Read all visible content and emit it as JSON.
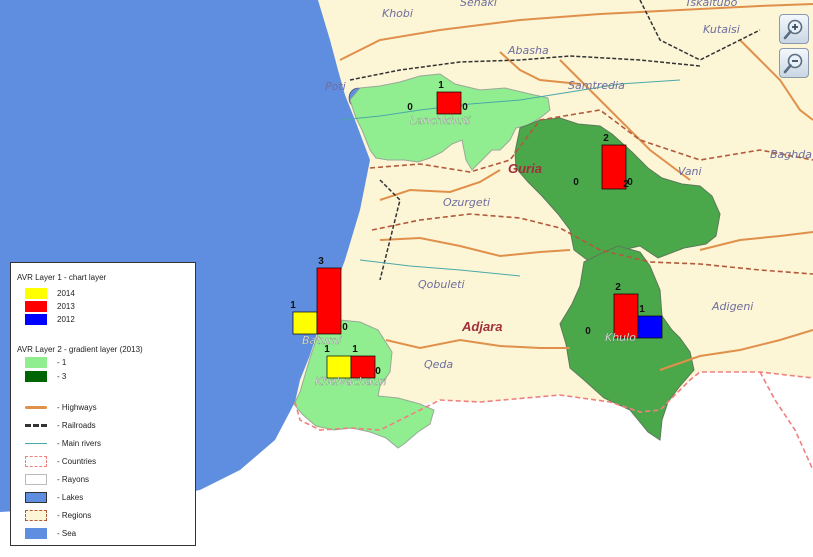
{
  "map": {
    "places": {
      "khobi": "Khobi",
      "senaki": "Senaki",
      "tskaltubo": "Tskaltubo",
      "abasha": "Abasha",
      "kutaisi": "Kutaisi",
      "poti": "Poti",
      "samtredia": "Samtredia",
      "vani": "Vani",
      "baghdati": "Baghda",
      "ozurgeti": "Ozurgeti",
      "qobuleti": "Qobuleti",
      "adigeni": "Adigeni",
      "qeda": "Qeda"
    },
    "regions": {
      "guria": "Guria",
      "adjara": "Adjara"
    },
    "rayons": {
      "lanchkhuti": {
        "name": "Lanchkhuti",
        "gradient_value": 1,
        "bars": {
          "2014": 0,
          "2013": 1,
          "2012": 0
        }
      },
      "chokhatauri": {
        "name": "",
        "gradient_value": 3,
        "bars": {
          "2014": 0,
          "2013": 2,
          "2012": 0
        },
        "extra_label": "2"
      },
      "batumi": {
        "name": "Batumi",
        "gradient_value": 1,
        "bars": {
          "2014": 1,
          "2013": 3,
          "2012": 0
        }
      },
      "khelvachauri": {
        "name": "Khelvachauri",
        "gradient_value": 1,
        "bars": {
          "2014": 1,
          "2013": 1,
          "2012": 0
        }
      },
      "khulo": {
        "name": "Khulo",
        "gradient_value": 3,
        "bars": {
          "2014": 0,
          "2013": 2,
          "2012": 1
        }
      }
    },
    "colors": {
      "sea": "#5f8ee0",
      "land": "#fcf5d6",
      "outside": "#ffffff",
      "gradient_low": "#90ee90",
      "gradient_high": "#4aa84a",
      "bar_2014": "#ffff00",
      "bar_2013": "#ff0000",
      "bar_2012": "#0000ff",
      "highway": "#e0904a",
      "region_border": "#b35a3a",
      "country_border": "#f08080"
    }
  },
  "zoom": {
    "in_icon": "zoom-in-icon",
    "out_icon": "zoom-out-icon"
  },
  "legend": {
    "layer1_title": "AVR Layer 1 - chart layer",
    "layer1_items": [
      "2014",
      "2013",
      "2012"
    ],
    "layer2_title": "AVR Layer 2 - gradient layer (2013)",
    "layer2_items": [
      "- 1",
      "- 3"
    ],
    "base_items": [
      "- Highways",
      "- Railroads",
      "- Main rivers",
      "- Countries",
      "- Rayons",
      "- Lakes",
      "- Regions",
      "- Sea"
    ]
  }
}
